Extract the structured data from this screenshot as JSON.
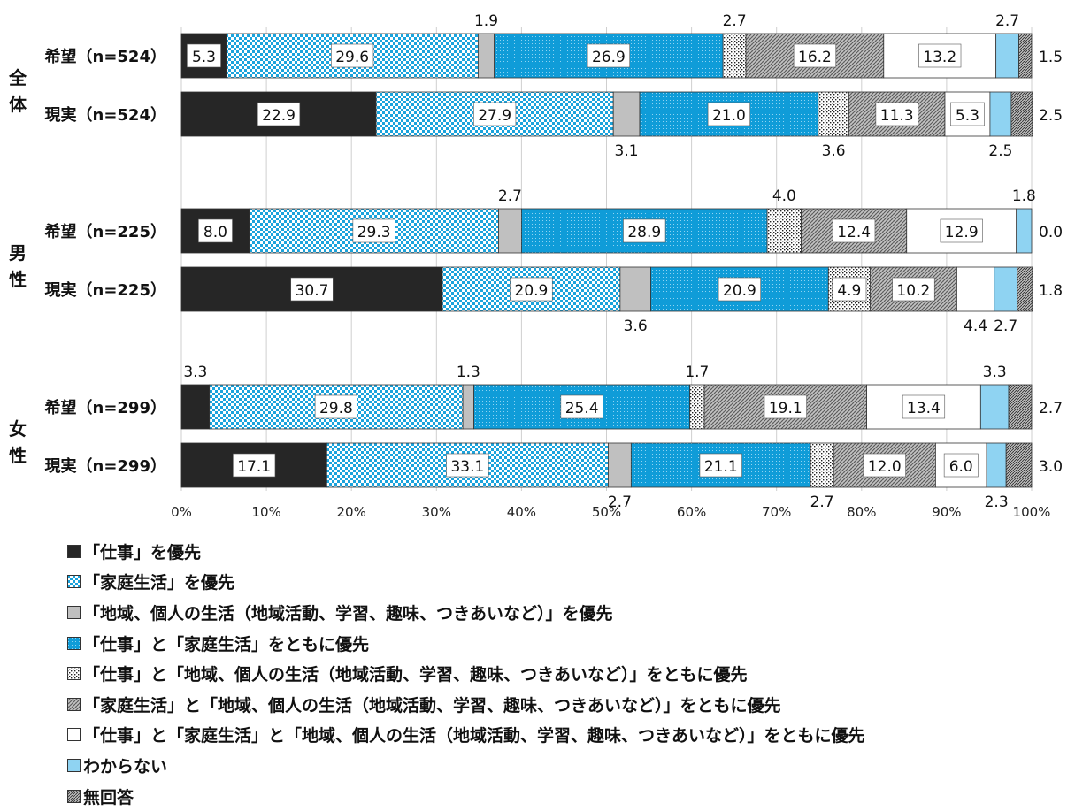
{
  "chart_data": {
    "type": "bar",
    "stacked": true,
    "orientation": "horizontal",
    "groups": [
      {
        "label": "全体",
        "rows": [
          "希望（n=524）",
          "現実（n=524）"
        ]
      },
      {
        "label": "男性",
        "rows": [
          "希望（n=225）",
          "現実（n=225）"
        ]
      },
      {
        "label": "女性",
        "rows": [
          "希望（n=299）",
          "現実（n=299）"
        ]
      }
    ],
    "categories": [
      "希望（n=524）",
      "現実（n=524）",
      "希望（n=225）",
      "現実（n=225）",
      "希望（n=299）",
      "現実（n=299）"
    ],
    "series": [
      {
        "name": "「仕事」を優先",
        "values": [
          5.3,
          22.9,
          8.0,
          30.7,
          3.3,
          17.1
        ],
        "labels": [
          "5.3",
          "22.9",
          "8.0",
          "30.7",
          "3.3",
          "17.1"
        ]
      },
      {
        "name": "「家庭生活」を優先",
        "values": [
          29.6,
          27.9,
          29.3,
          20.9,
          29.8,
          33.1
        ],
        "labels": [
          "29.6",
          "27.9",
          "29.3",
          "20.9",
          "29.8",
          "33.1"
        ]
      },
      {
        "name": "「地域、個人の生活（地域活動、学習、趣味、つきあいなど）」を優先",
        "values": [
          1.9,
          3.1,
          2.7,
          3.6,
          1.3,
          2.7
        ],
        "labels": [
          "1.9",
          "3.1",
          "2.7",
          "3.6",
          "1.3",
          "2.7"
        ]
      },
      {
        "name": "「仕事」と「家庭生活」をともに優先",
        "values": [
          26.9,
          21.0,
          28.9,
          20.9,
          25.4,
          21.1
        ],
        "labels": [
          "26.9",
          "21.0",
          "28.9",
          "20.9",
          "25.4",
          "21.1"
        ]
      },
      {
        "name": "「仕事」と「地域、個人の生活（地域活動、学習、趣味、つきあいなど）」をともに優先",
        "values": [
          2.7,
          3.6,
          4.0,
          4.9,
          1.7,
          2.7
        ],
        "labels": [
          "2.7",
          "3.6",
          "4.0",
          "4.9",
          "1.7",
          "2.7"
        ]
      },
      {
        "name": "「家庭生活」と「地域、個人の生活（地域活動、学習、趣味、つきあいなど）」をともに優先",
        "values": [
          16.2,
          11.3,
          12.4,
          10.2,
          19.1,
          12.0
        ],
        "labels": [
          "16.2",
          "11.3",
          "12.4",
          "10.2",
          "19.1",
          "12.0"
        ]
      },
      {
        "name": "「仕事」と「家庭生活」と「地域、個人の生活（地域活動、学習、趣味、つきあいなど）」をともに優先",
        "values": [
          13.2,
          5.3,
          12.9,
          4.4,
          13.4,
          6.0
        ],
        "labels": [
          "13.2",
          "5.3",
          "12.9",
          "4.4",
          "13.4",
          "6.0"
        ]
      },
      {
        "name": "わからない",
        "values": [
          2.7,
          2.5,
          1.8,
          2.7,
          3.3,
          2.3
        ],
        "labels": [
          "2.7",
          "2.5",
          "1.8",
          "2.7",
          "3.3",
          "2.3"
        ]
      },
      {
        "name": "無回答",
        "values": [
          1.5,
          2.5,
          0.0,
          1.8,
          2.7,
          3.0
        ],
        "labels": [
          "1.5",
          "2.5",
          "0.0",
          "1.8",
          "2.7",
          "3.0"
        ]
      }
    ],
    "xlim": [
      0,
      100
    ],
    "xticks": [
      "0%",
      "10%",
      "20%",
      "30%",
      "40%",
      "50%",
      "60%",
      "70%",
      "80%",
      "90%",
      "100%"
    ],
    "grid": true,
    "legend_position": "bottom",
    "colors": [
      "#262626",
      "#1aa3dc",
      "#c0c0c0",
      "#0f9cd8",
      "#ffffff",
      "#9a9a9a",
      "#ffffff",
      "#8fd3f2",
      "#b0b0b0"
    ],
    "patterns": [
      "solid",
      "checker-blue",
      "solid",
      "dots-blue",
      "dots-sparse",
      "hatch-gray",
      "solid",
      "solid",
      "hatch-dense"
    ]
  }
}
